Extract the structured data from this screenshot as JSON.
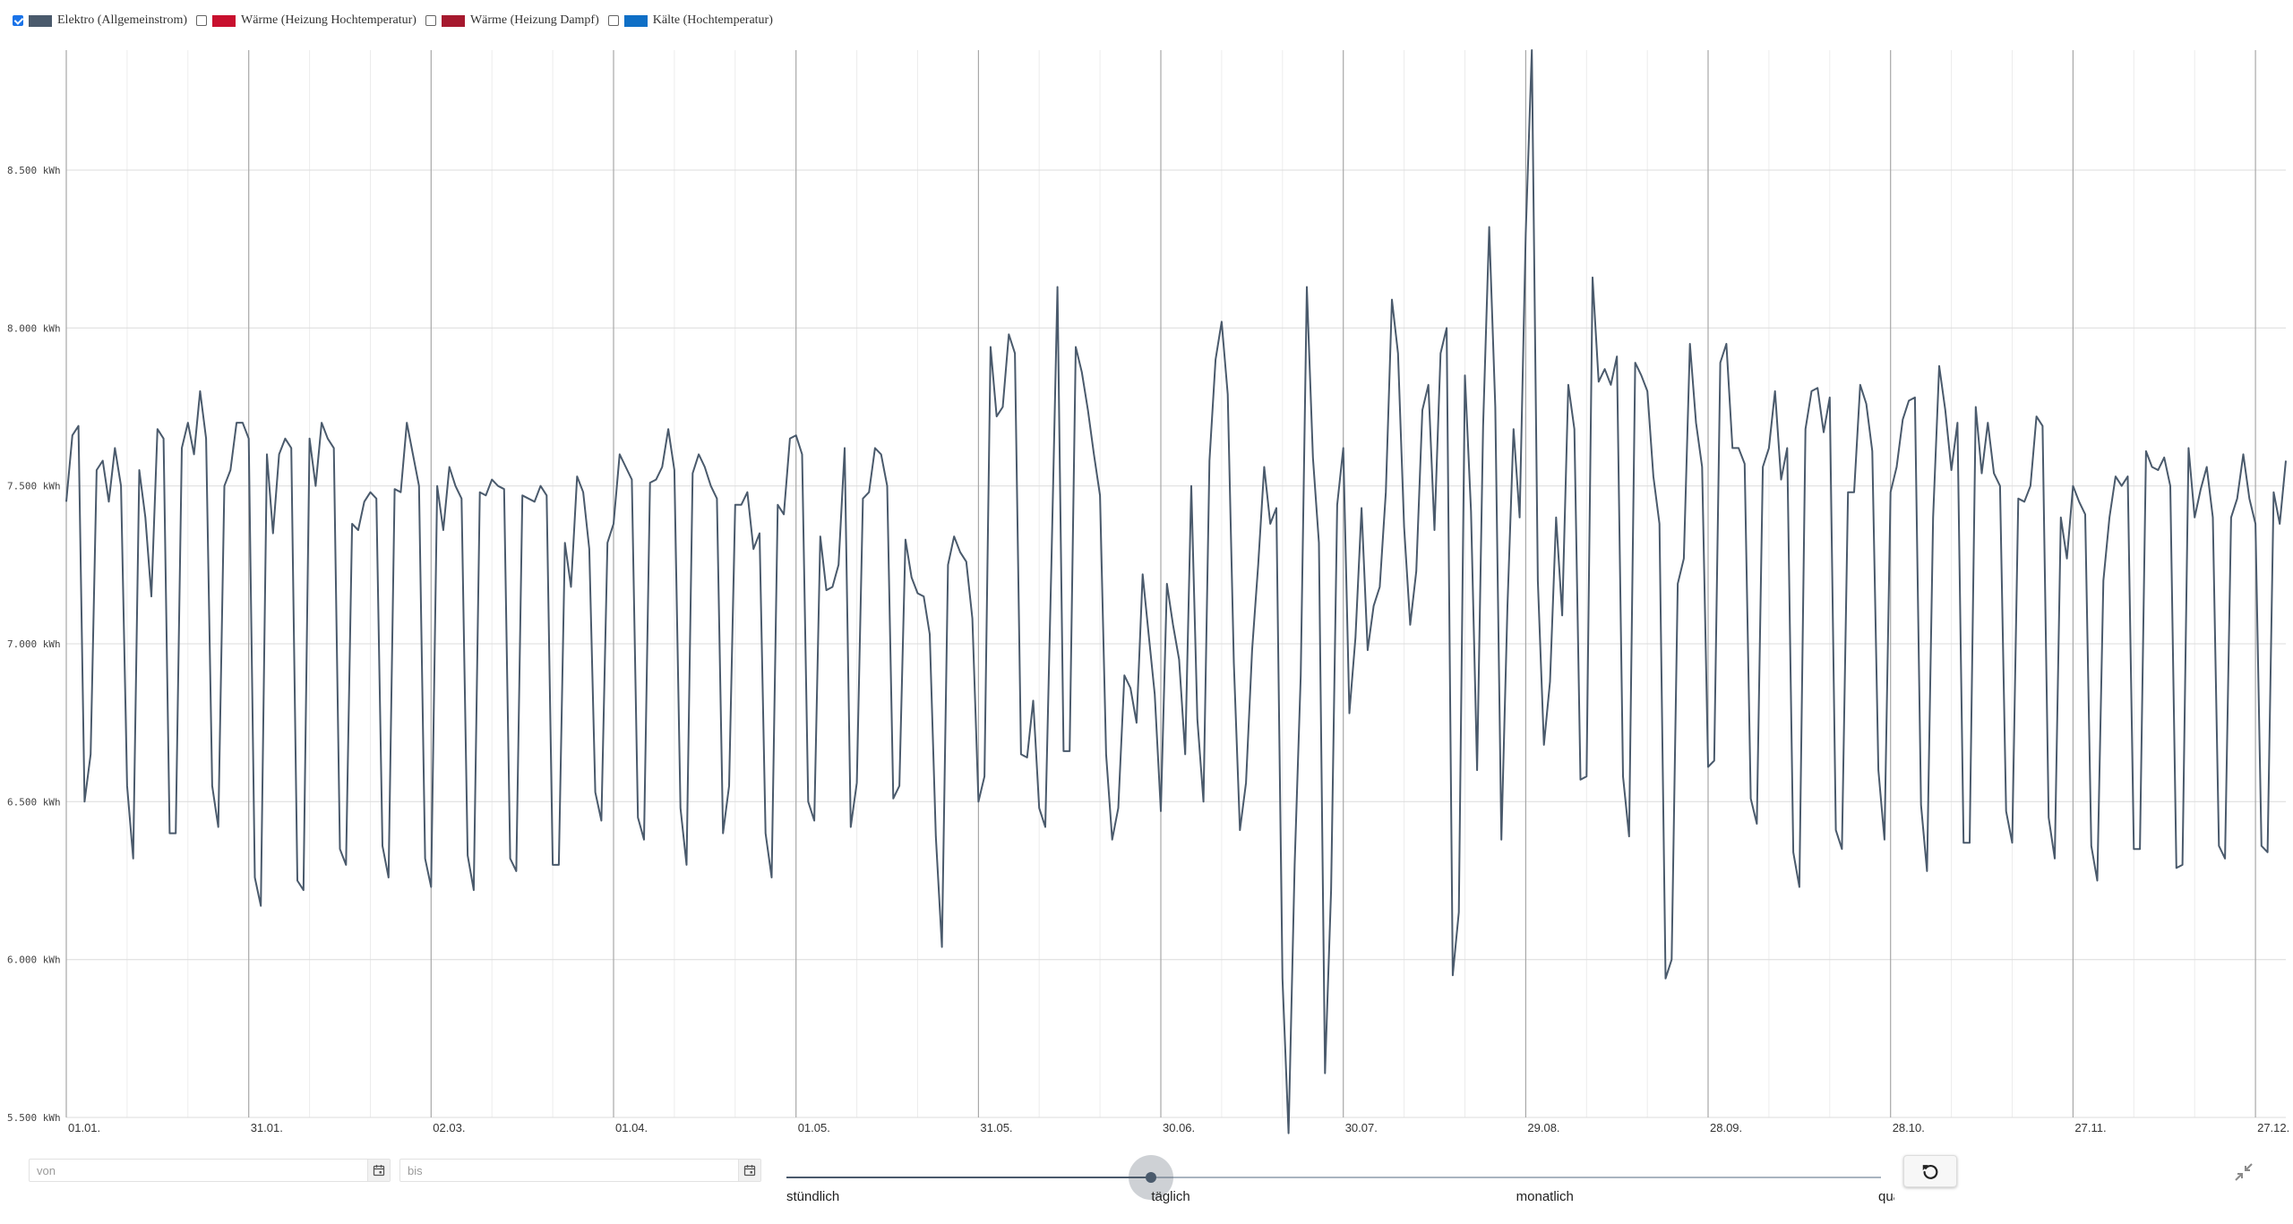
{
  "legend": [
    {
      "label": "Elektro (Allgemeinstrom)",
      "color": "#4a5a6c",
      "checked": true
    },
    {
      "label": "Wärme (Heizung Hochtemperatur)",
      "color": "#c8102e",
      "checked": false
    },
    {
      "label": "Wärme (Heizung Dampf)",
      "color": "#a6192e",
      "checked": false
    },
    {
      "label": "Kälte (Hochtemperatur)",
      "color": "#0f6fc6",
      "checked": false
    }
  ],
  "controls": {
    "from_placeholder": "von",
    "to_placeholder": "bis",
    "slider_labels": [
      "stündlich",
      "täglich",
      "monatlich",
      "quartalsweise"
    ],
    "slider_value": 1
  },
  "chart_data": {
    "type": "line",
    "unit": "kWh",
    "ylim": [
      5500,
      8880
    ],
    "yticks": [
      5500,
      6000,
      6500,
      7000,
      7500,
      8000,
      8500
    ],
    "ytick_labels": [
      "5.500 kWh",
      "6.000 kWh",
      "6.500 kWh",
      "7.000 kWh",
      "7.500 kWh",
      "8.000 kWh",
      "8.500 kWh"
    ],
    "x_start": "01.01.",
    "x_days": 366,
    "xtick_labels": [
      "01.01.",
      "31.01.",
      "02.03.",
      "01.04.",
      "01.05.",
      "31.05.",
      "30.06.",
      "30.07.",
      "29.08.",
      "28.09.",
      "28.10.",
      "27.11.",
      "27.12."
    ],
    "grid": true,
    "legend_position": "top-left",
    "series": [
      {
        "name": "Elektro (Allgemeinstrom)",
        "color": "#4a5a6c",
        "values": [
          7450,
          7660,
          7690,
          6500,
          6650,
          7550,
          7580,
          7450,
          7620,
          7500,
          6550,
          6320,
          7550,
          7400,
          7150,
          7680,
          7650,
          6400,
          6400,
          7620,
          7700,
          7600,
          7800,
          7650,
          6550,
          6420,
          7500,
          7550,
          7700,
          7700,
          7650,
          6260,
          6170,
          7600,
          7350,
          7600,
          7650,
          7620,
          6250,
          6220,
          7650,
          7500,
          7700,
          7650,
          7620,
          6350,
          6300,
          7380,
          7360,
          7450,
          7480,
          7460,
          6360,
          6260,
          7490,
          7480,
          7700,
          7600,
          7500,
          6320,
          6230,
          7500,
          7360,
          7560,
          7500,
          7460,
          6330,
          6220,
          7480,
          7470,
          7520,
          7500,
          7490,
          6320,
          6280,
          7470,
          7460,
          7450,
          7500,
          7470,
          6300,
          6300,
          7320,
          7180,
          7530,
          7480,
          7300,
          6530,
          6440,
          7320,
          7380,
          7600,
          7560,
          7520,
          6450,
          6380,
          7510,
          7520,
          7560,
          7680,
          7550,
          6480,
          6300,
          7540,
          7600,
          7560,
          7500,
          7460,
          6400,
          6550,
          7440,
          7440,
          7480,
          7300,
          7350,
          6400,
          6260,
          7440,
          7410,
          7650,
          7660,
          7600,
          6500,
          6440,
          7340,
          7170,
          7180,
          7250,
          7620,
          6420,
          6560,
          7460,
          7480,
          7620,
          7600,
          7500,
          6510,
          6550,
          7330,
          7210,
          7160,
          7150,
          7030,
          6390,
          6040,
          7250,
          7340,
          7290,
          7260,
          7080,
          6500,
          6580,
          7940,
          7720,
          7750,
          7980,
          7920,
          6650,
          6640,
          6820,
          6480,
          6420,
          7250,
          8130,
          6660,
          6660,
          7940,
          7860,
          7740,
          7600,
          7470,
          6650,
          6380,
          6480,
          6900,
          6860,
          6750,
          7220,
          7030,
          6840,
          6470,
          7190,
          7060,
          6950,
          6650,
          7500,
          6760,
          6500,
          7580,
          7900,
          8020,
          7790,
          6940,
          6410,
          6560,
          6980,
          7250,
          7560,
          7380,
          7430,
          5940,
          5450,
          6300,
          6900,
          8130,
          7590,
          7320,
          5640,
          6220,
          7440,
          7620,
          6780,
          7020,
          7430,
          6980,
          7120,
          7180,
          7480,
          8090,
          7920,
          7370,
          7060,
          7230,
          7740,
          7820,
          7360,
          7920,
          8000,
          5950,
          6150,
          7850,
          7420,
          6600,
          7690,
          8320,
          7750,
          6380,
          7120,
          7680,
          7400,
          8300,
          8880,
          7200,
          6680,
          6880,
          7400,
          7090,
          7820,
          7680,
          6570,
          6580,
          8160,
          7830,
          7870,
          7820,
          7910,
          6580,
          6390,
          7890,
          7850,
          7800,
          7530,
          7380,
          5940,
          6000,
          7190,
          7270,
          7950,
          7700,
          7560,
          6610,
          6630,
          7890,
          7950,
          7620,
          7620,
          7570,
          6510,
          6430,
          7560,
          7620,
          7800,
          7520,
          7620,
          6340,
          6230,
          7680,
          7800,
          7810,
          7670,
          7780,
          6410,
          6350,
          7480,
          7480,
          7820,
          7760,
          7610,
          6600,
          6380,
          7480,
          7560,
          7710,
          7770,
          7780,
          6490,
          6280,
          7400,
          7880,
          7740,
          7550,
          7700,
          6370,
          6370,
          7750,
          7540,
          7700,
          7540,
          7500,
          6470,
          6370,
          7460,
          7450,
          7500,
          7720,
          7690,
          6450,
          6320,
          7400,
          7270,
          7500,
          7450,
          7410,
          6360,
          6250,
          7200,
          7400,
          7530,
          7500,
          7530,
          6350,
          6350,
          7610,
          7560,
          7550,
          7590,
          7500,
          6290,
          6300,
          7620,
          7400,
          7490,
          7560,
          7400,
          6360,
          6320,
          7400,
          7460,
          7600,
          7460,
          7380,
          6360,
          6340,
          7480,
          7380,
          7580
        ]
      }
    ]
  }
}
